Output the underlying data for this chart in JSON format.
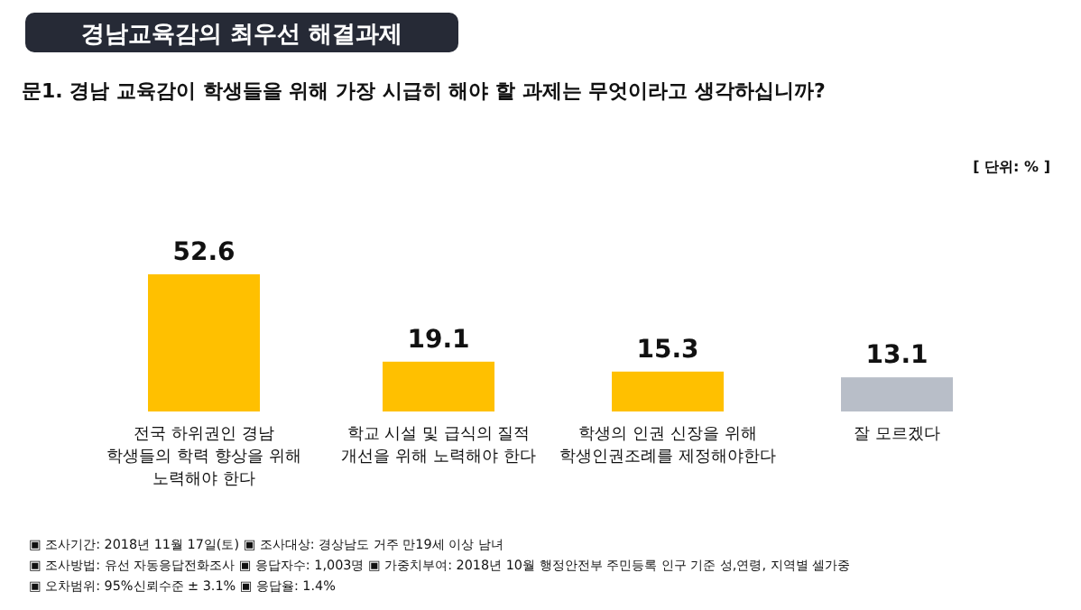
{
  "chart_data": {
    "type": "bar",
    "title": "경남교육감의 최우선 해결과제",
    "subtitle": "문1. 경남 교육감이 학생들을 위해 가장 시급히 해야 할 과제는 무엇이라고 생각하십니까?",
    "categories": [
      "전국 하위권인 경남\n학생들의 학력 향상을 위해\n노력해야 한다",
      "학교 시설 및 급식의 질적\n개선을 위해 노력해야 한다",
      "학생의 인권 신장을 위해\n학생인권조례를 제정해야한다",
      "잘 모르겠다"
    ],
    "values": [
      52.6,
      19.1,
      15.3,
      13.1
    ],
    "colors": [
      "#ffc000",
      "#ffc000",
      "#ffc000",
      "#b8bec8"
    ],
    "data_labels": true,
    "annotations": [
      "[ 단위: % ]",
      "▣ 조사기간: 2018년 11월 17일(토) ▣ 조사대상: 경상남도 거주 만19세 이상 남녀",
      "▣ 조사방법: 유선 자동응답전화조사 ▣ 응답자수: 1,003명 ▣ 가중치부여: 2018년 10월 행정안전부 주민등록 인구 기준 성,연령, 지역별 셀가중",
      "▣ 오차범위: 95%신뢰수준 ± 3.1% ▣ 응답율: 1.4%"
    ]
  }
}
